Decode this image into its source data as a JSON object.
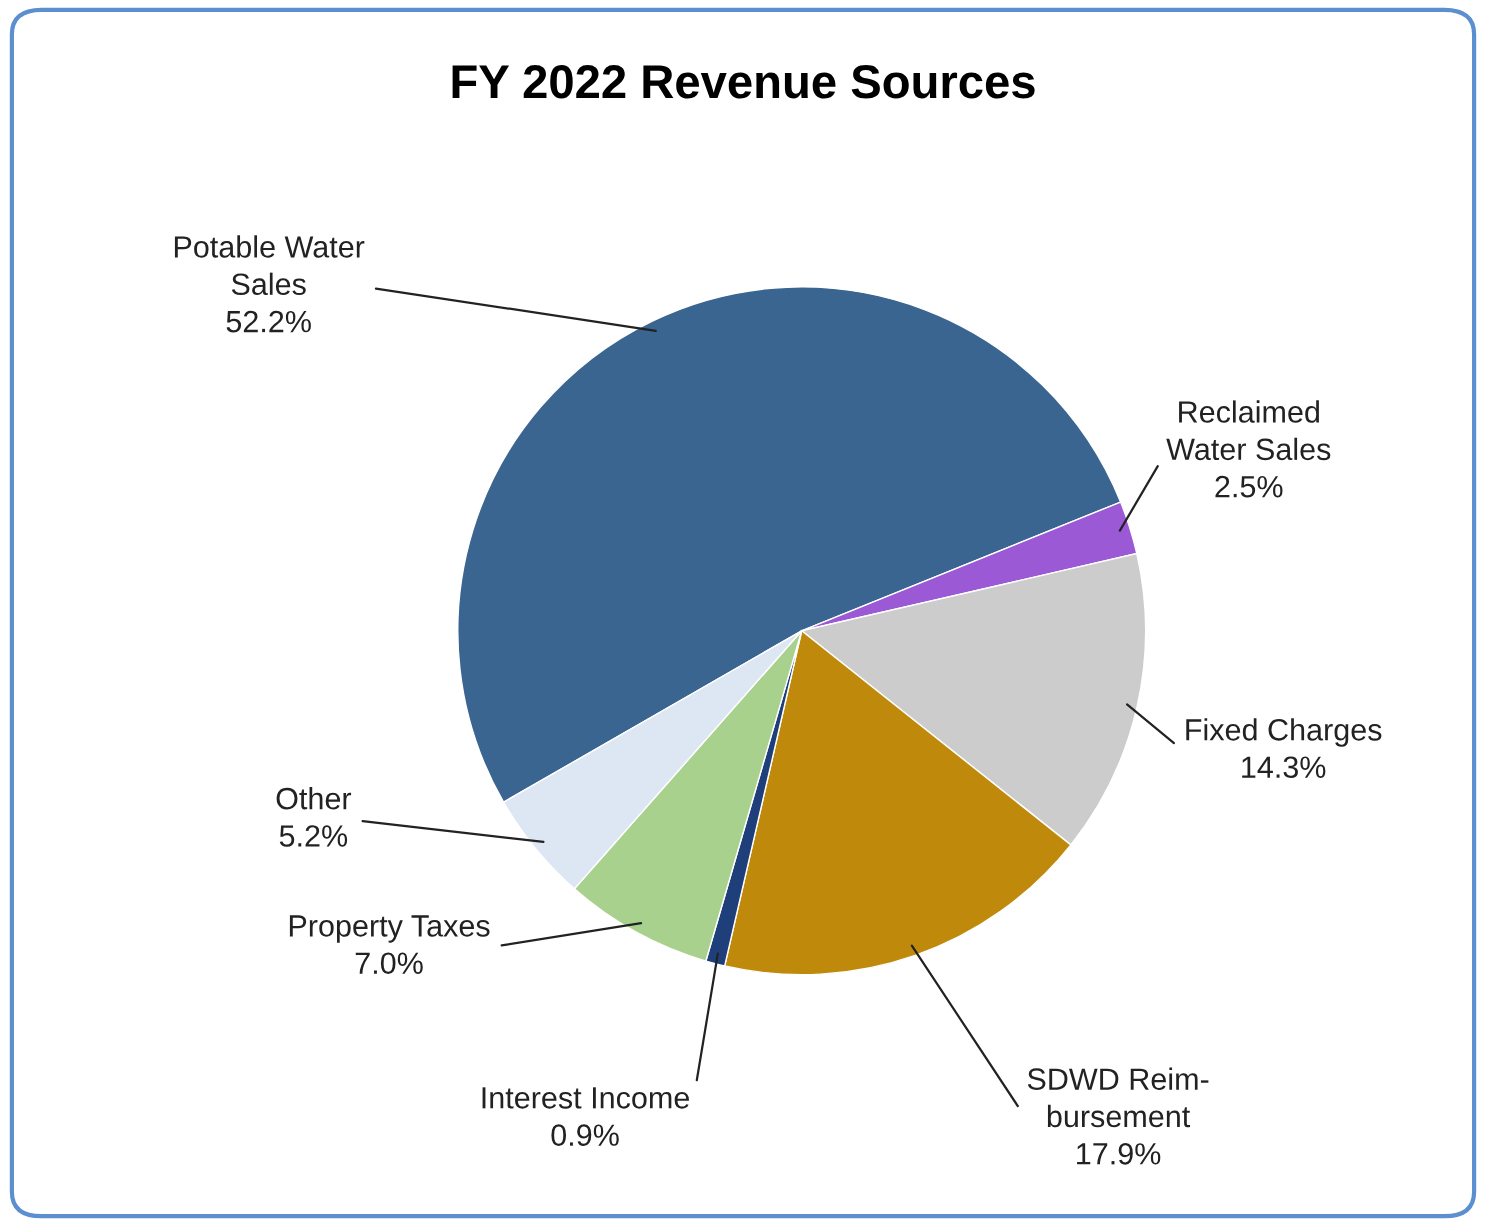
{
  "chart_data": {
    "type": "pie",
    "title": "FY 2022 Revenue Sources",
    "categories": [
      "Potable Water\nSales",
      "Reclaimed\nWater Sales",
      "Fixed Charges",
      "SDWD Reim-\nbursement",
      "Interest Income",
      "Property Taxes",
      "Other"
    ],
    "values": [
      52.2,
      2.5,
      14.3,
      17.9,
      0.9,
      7.0,
      5.2
    ],
    "colors": [
      "#3a6590",
      "#9b59d6",
      "#cccccc",
      "#bf8a0c",
      "#1f3f7a",
      "#a9d18e",
      "#dde6f3"
    ],
    "value_labels": [
      "52.2%",
      "2.5%",
      "14.3%",
      "17.9%",
      "0.9%",
      "7.0%",
      "5.2%"
    ],
    "legend": false
  }
}
